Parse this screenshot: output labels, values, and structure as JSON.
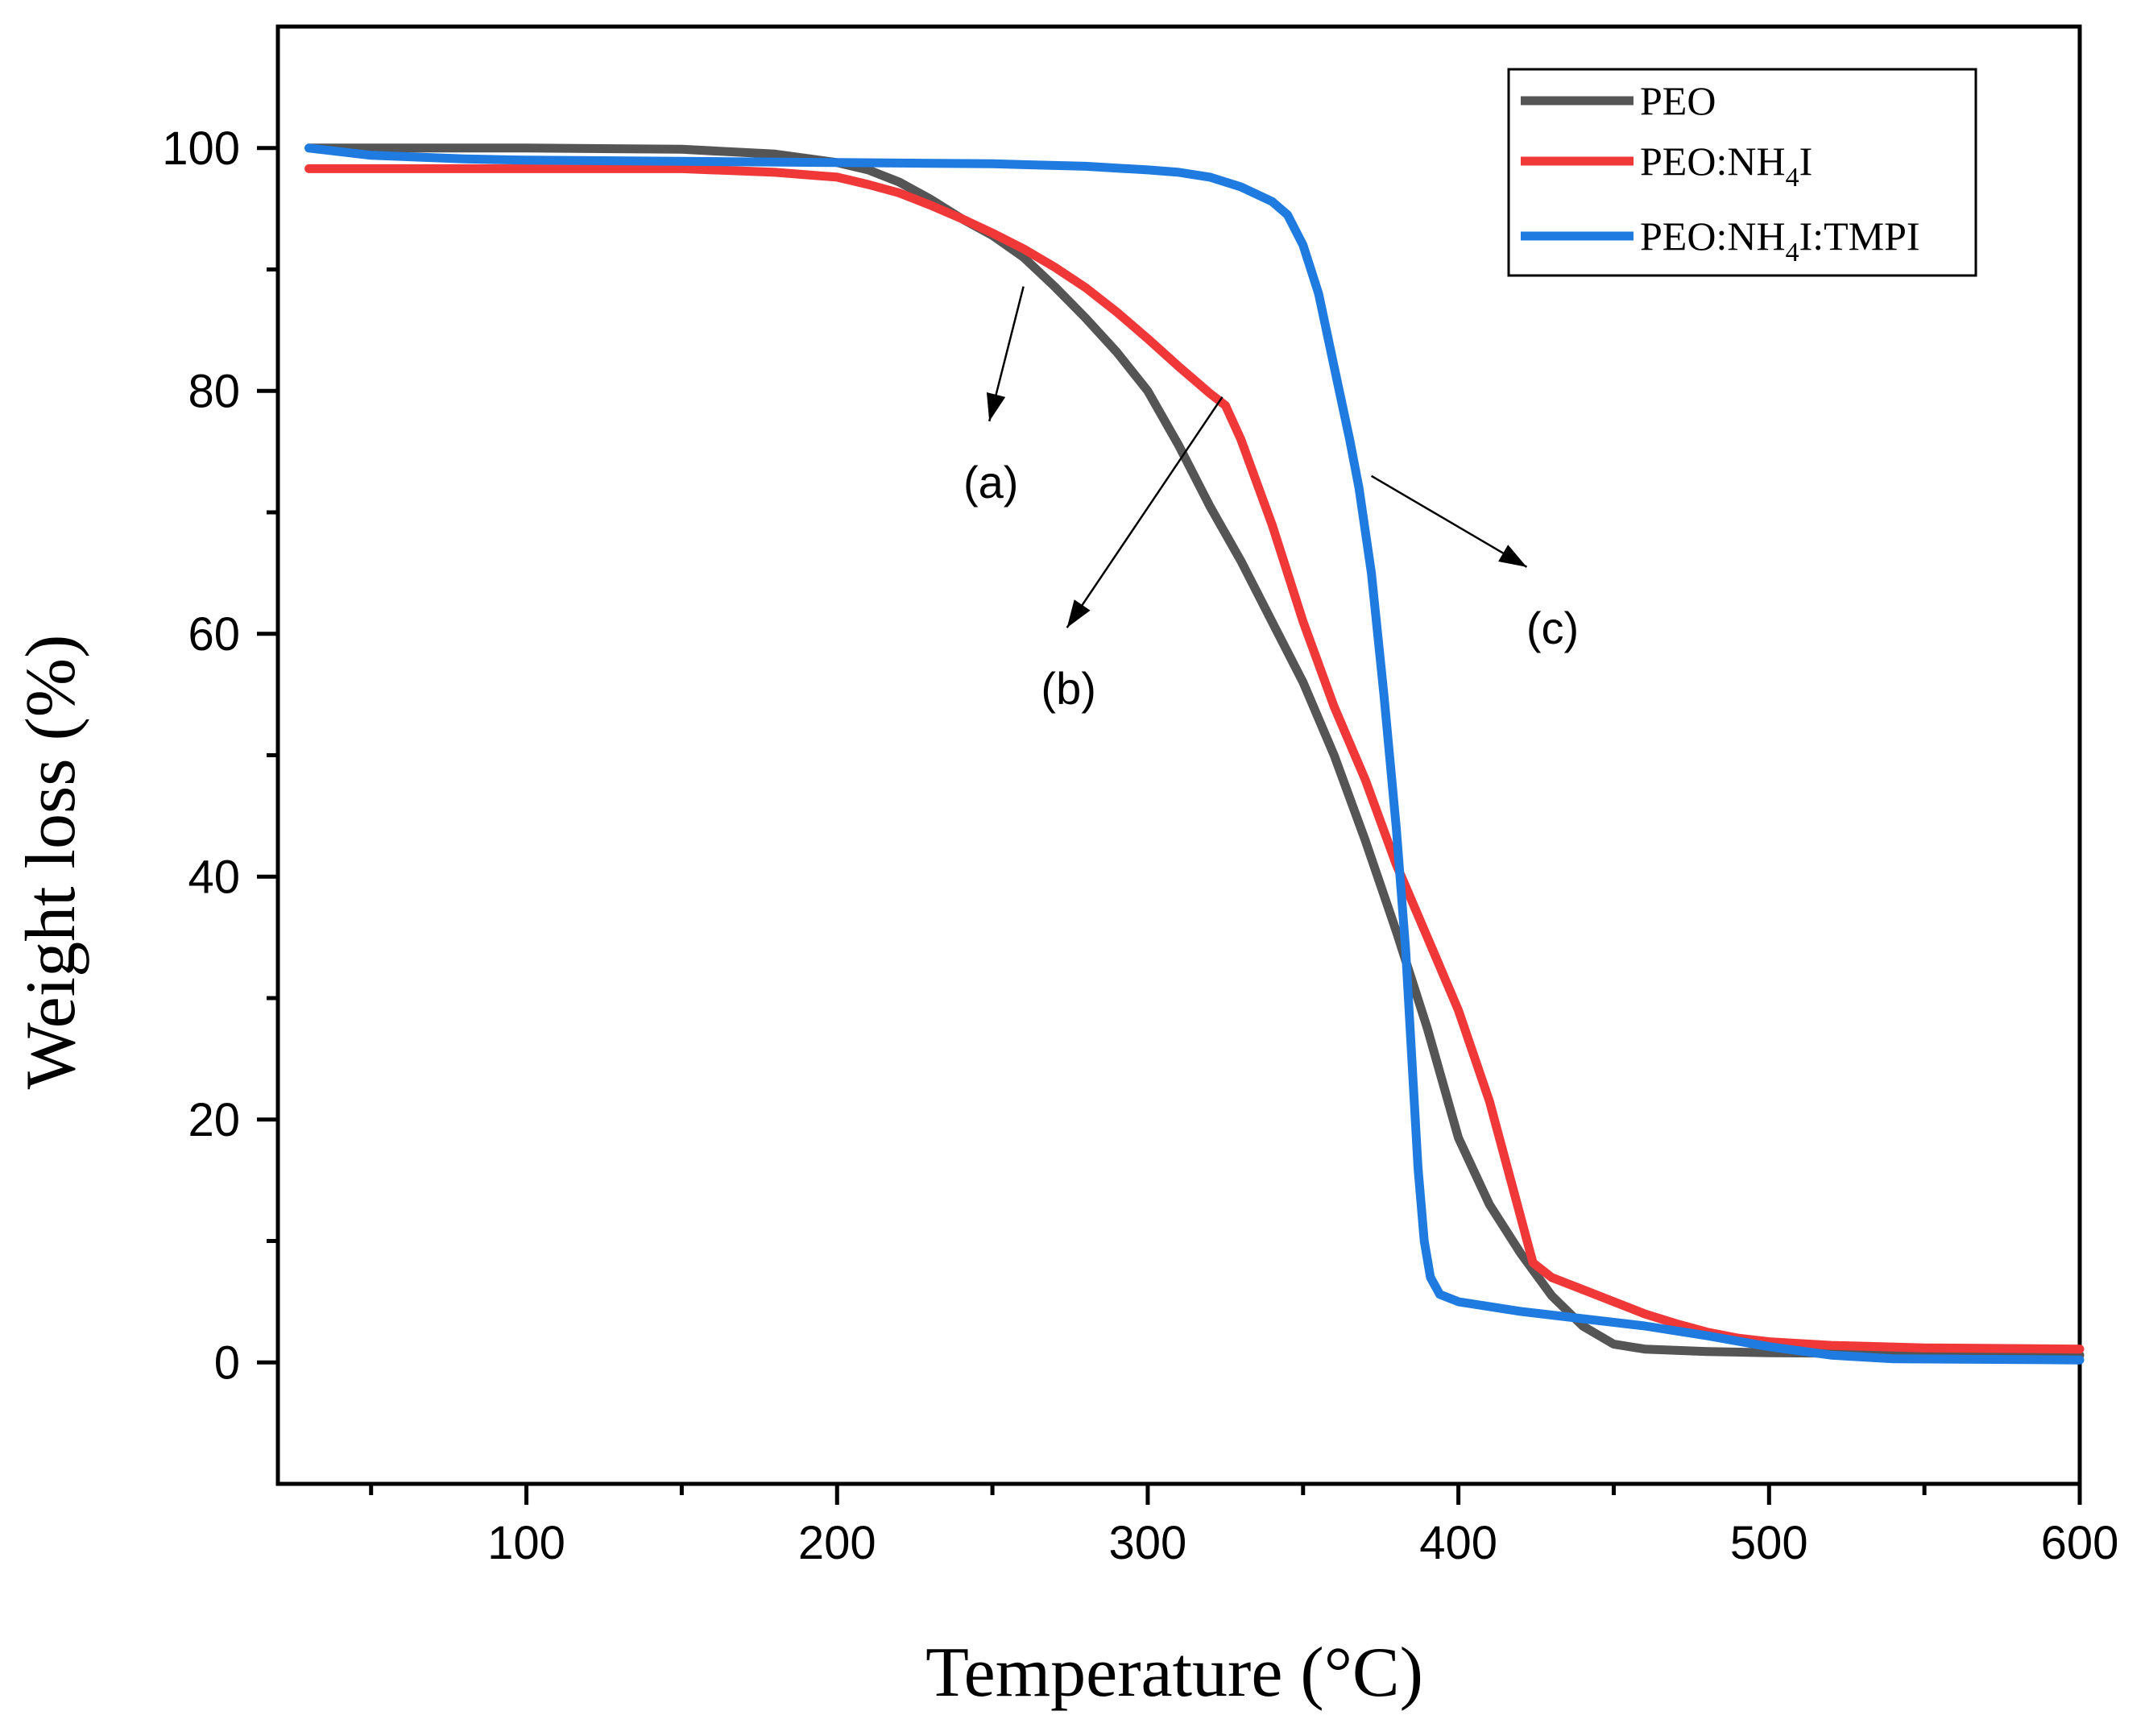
{
  "chart_data": {
    "type": "line",
    "title": "",
    "xlabel": "Temperature (°C)",
    "ylabel": "Weight loss (%)",
    "xlim": [
      20,
      600
    ],
    "ylim": [
      -10,
      110
    ],
    "x_ticks": [
      100,
      200,
      300,
      400,
      500,
      600
    ],
    "x_minor_ticks": [
      50,
      150,
      250,
      350,
      450,
      550
    ],
    "y_ticks": [
      0,
      20,
      40,
      60,
      80,
      100
    ],
    "y_minor_ticks": [
      10,
      30,
      50,
      70,
      90
    ],
    "legend_position": "top-right",
    "series": [
      {
        "name": "PEO",
        "legend": {
          "main": "PEO",
          "sub": "",
          "rest": ""
        },
        "color": "#555555",
        "points": [
          [
            30,
            100
          ],
          [
            60,
            100
          ],
          [
            100,
            100
          ],
          [
            150,
            99.9
          ],
          [
            180,
            99.5
          ],
          [
            200,
            98.8
          ],
          [
            210,
            98.2
          ],
          [
            220,
            97.2
          ],
          [
            230,
            95.8
          ],
          [
            240,
            94.2
          ],
          [
            250,
            92.8
          ],
          [
            260,
            91
          ],
          [
            270,
            88.6
          ],
          [
            280,
            86
          ],
          [
            290,
            83.2
          ],
          [
            300,
            80
          ],
          [
            310,
            75.5
          ],
          [
            320,
            70.5
          ],
          [
            330,
            66
          ],
          [
            340,
            61
          ],
          [
            350,
            56
          ],
          [
            360,
            50
          ],
          [
            370,
            43
          ],
          [
            380,
            35.5
          ],
          [
            390,
            27.5
          ],
          [
            400,
            18.5
          ],
          [
            410,
            13
          ],
          [
            420,
            9
          ],
          [
            430,
            5.5
          ],
          [
            440,
            3
          ],
          [
            450,
            1.5
          ],
          [
            460,
            1.1
          ],
          [
            480,
            0.9
          ],
          [
            500,
            0.8
          ],
          [
            550,
            0.7
          ],
          [
            600,
            0.6
          ]
        ]
      },
      {
        "name": "PEO:NH4I",
        "legend": {
          "main": "PEO:NH",
          "sub": "4",
          "rest": "I"
        },
        "color": "#F03838",
        "points": [
          [
            30,
            98.3
          ],
          [
            60,
            98.3
          ],
          [
            100,
            98.3
          ],
          [
            150,
            98.3
          ],
          [
            180,
            98
          ],
          [
            200,
            97.6
          ],
          [
            210,
            97
          ],
          [
            220,
            96.3
          ],
          [
            230,
            95.3
          ],
          [
            240,
            94.2
          ],
          [
            250,
            93
          ],
          [
            260,
            91.7
          ],
          [
            270,
            90.2
          ],
          [
            280,
            88.5
          ],
          [
            290,
            86.5
          ],
          [
            300,
            84.3
          ],
          [
            310,
            82
          ],
          [
            320,
            79.8
          ],
          [
            325,
            78.8
          ],
          [
            330,
            76
          ],
          [
            340,
            69
          ],
          [
            350,
            61
          ],
          [
            360,
            54
          ],
          [
            370,
            48
          ],
          [
            380,
            41
          ],
          [
            390,
            35
          ],
          [
            400,
            29
          ],
          [
            410,
            21.5
          ],
          [
            420,
            12
          ],
          [
            424,
            8.2
          ],
          [
            430,
            7
          ],
          [
            440,
            6
          ],
          [
            450,
            5
          ],
          [
            460,
            4
          ],
          [
            470,
            3.2
          ],
          [
            480,
            2.5
          ],
          [
            490,
            2
          ],
          [
            500,
            1.7
          ],
          [
            520,
            1.4
          ],
          [
            550,
            1.2
          ],
          [
            600,
            1.1
          ]
        ]
      },
      {
        "name": "PEO:NH4I:TMPI",
        "legend": {
          "main": "PEO:NH",
          "sub": "4",
          "rest": "I:TMPI"
        },
        "color": "#1F7BE0",
        "points": [
          [
            30,
            100
          ],
          [
            50,
            99.4
          ],
          [
            80,
            99.1
          ],
          [
            100,
            99
          ],
          [
            150,
            98.9
          ],
          [
            200,
            98.8
          ],
          [
            250,
            98.7
          ],
          [
            280,
            98.5
          ],
          [
            300,
            98.2
          ],
          [
            310,
            98
          ],
          [
            320,
            97.6
          ],
          [
            330,
            96.8
          ],
          [
            340,
            95.6
          ],
          [
            345,
            94.5
          ],
          [
            350,
            92
          ],
          [
            355,
            88
          ],
          [
            360,
            82
          ],
          [
            365,
            76
          ],
          [
            368,
            72
          ],
          [
            372,
            65
          ],
          [
            376,
            55
          ],
          [
            380,
            44
          ],
          [
            383,
            34
          ],
          [
            385,
            25
          ],
          [
            387,
            16
          ],
          [
            389,
            10
          ],
          [
            391,
            7
          ],
          [
            394,
            5.6
          ],
          [
            400,
            5
          ],
          [
            420,
            4.2
          ],
          [
            440,
            3.6
          ],
          [
            460,
            3
          ],
          [
            480,
            2.2
          ],
          [
            500,
            1.3
          ],
          [
            520,
            0.6
          ],
          [
            540,
            0.3
          ],
          [
            600,
            0.2
          ]
        ]
      }
    ],
    "annotations": [
      {
        "label": "(a)",
        "target": [
          260,
          88.6
        ],
        "arrow_to": [
          249,
          77.5
        ]
      },
      {
        "label": "(b)",
        "target": [
          324,
          79.5
        ],
        "arrow_to": [
          274,
          60.5
        ]
      },
      {
        "label": "(c)",
        "target": [
          372,
          73
        ],
        "arrow_to": [
          422,
          65.5
        ]
      }
    ]
  }
}
